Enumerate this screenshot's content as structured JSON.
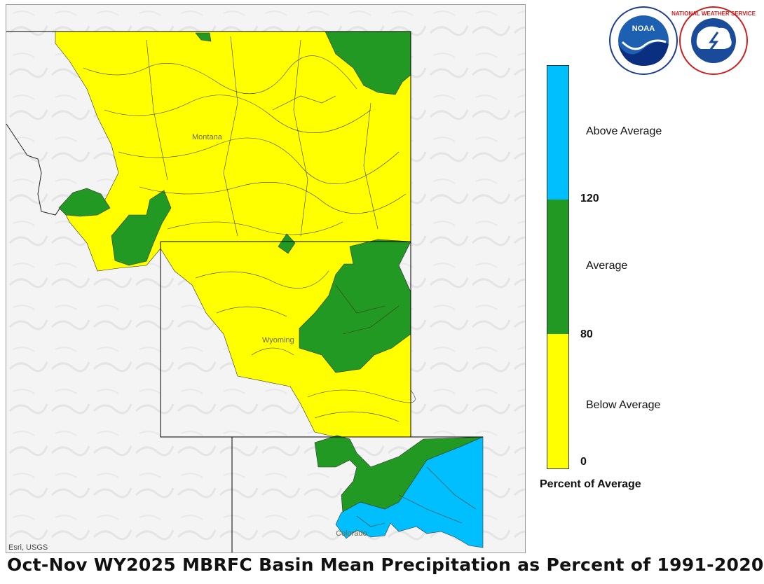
{
  "title": "Oct-Nov WY2025 MBRFC Basin Mean Precipitation as Percent of 1991-2020",
  "attribution": "Esri, USGS",
  "state_labels": {
    "montana": "Montana",
    "wyoming": "Wyoming",
    "colorado": "Colorado"
  },
  "logos": {
    "noaa_text": "NOAA",
    "nws_ring_text": "NATIONAL WEATHER SERVICE"
  },
  "legend": {
    "title": "Percent of Average",
    "ticks": [
      "120",
      "80",
      "0"
    ],
    "categories": [
      {
        "label": "Above Average",
        "color": "#00bfff"
      },
      {
        "label": "Average",
        "color": "#229922"
      },
      {
        "label": "Below Average",
        "color": "#ffff00"
      }
    ]
  },
  "colors": {
    "above": "#00bfff",
    "average": "#229922",
    "below": "#ffff00",
    "basemap": "#f4f4f4",
    "boundary": "#000000"
  }
}
